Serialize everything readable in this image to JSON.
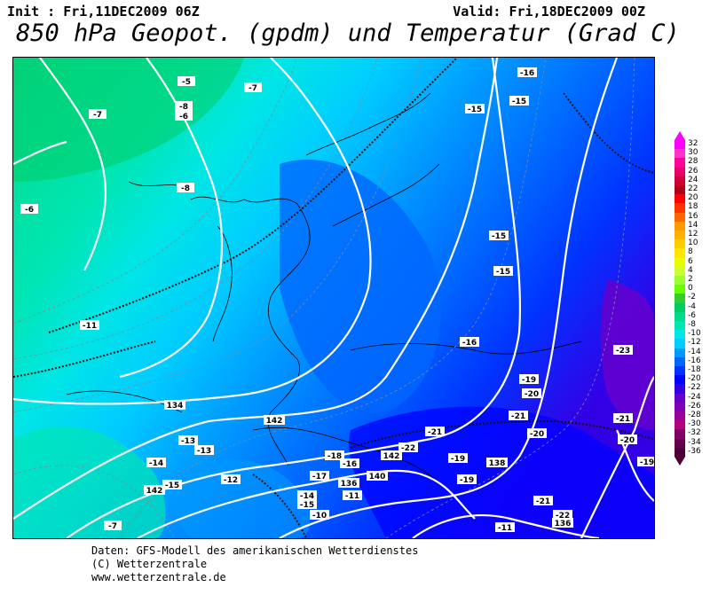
{
  "header": {
    "init": "Init : Fri,11DEC2009 06Z",
    "valid": "Valid: Fri,18DEC2009 00Z",
    "title": "850 hPa Geopot. (gpdm) und Temperatur (Grad C)"
  },
  "footer": {
    "line1": "Daten: GFS-Modell des amerikanischen Wetterdienstes",
    "line2": "(C) Wetterzentrale",
    "line3": "www.wetterzentrale.de"
  },
  "legend": {
    "labels": [
      "32",
      "30",
      "28",
      "26",
      "24",
      "22",
      "20",
      "18",
      "16",
      "14",
      "12",
      "10",
      "8",
      "6",
      "4",
      "2",
      "0",
      "-2",
      "-4",
      "-6",
      "-8",
      "-10",
      "-12",
      "-14",
      "-16",
      "-18",
      "-20",
      "-22",
      "-24",
      "-26",
      "-28",
      "-30",
      "-32",
      "-34",
      "-36"
    ],
    "colors": [
      "#ff00ff",
      "#ff33cc",
      "#ff0099",
      "#e60066",
      "#cc0033",
      "#b3001a",
      "#ff0000",
      "#ff3300",
      "#ff6600",
      "#ff9900",
      "#ffb300",
      "#ffcc00",
      "#ffe600",
      "#e6ff00",
      "#ccff33",
      "#99ff33",
      "#66ff00",
      "#33cc33",
      "#00cc66",
      "#00d98c",
      "#00e6b3",
      "#00e6e6",
      "#00ccff",
      "#0099ff",
      "#0066ff",
      "#0033ff",
      "#0000ff",
      "#3300e6",
      "#6600cc",
      "#8000b3",
      "#990099",
      "#b30080",
      "#800066",
      "#66004d",
      "#4d0033"
    ]
  },
  "map": {
    "temperature_labels": [
      "-5",
      "-7",
      "-8",
      "-6",
      "-7",
      "-8",
      "-6",
      "-11",
      "-16",
      "-15",
      "-15",
      "-15",
      "-15",
      "-16",
      "-23",
      "-19",
      "-20",
      "-21",
      "-20",
      "-21",
      "-20",
      "-22",
      "-21",
      "-18",
      "-13",
      "-13",
      "-14",
      "-15",
      "-12",
      "-17",
      "-19",
      "-16",
      "-14",
      "-15",
      "-11",
      "-10",
      "-7",
      "-19",
      "-21",
      "-22",
      "-19",
      "-11"
    ],
    "geopotential_labels": [
      "134",
      "142",
      "142",
      "136",
      "140",
      "138",
      "136",
      "142"
    ]
  }
}
